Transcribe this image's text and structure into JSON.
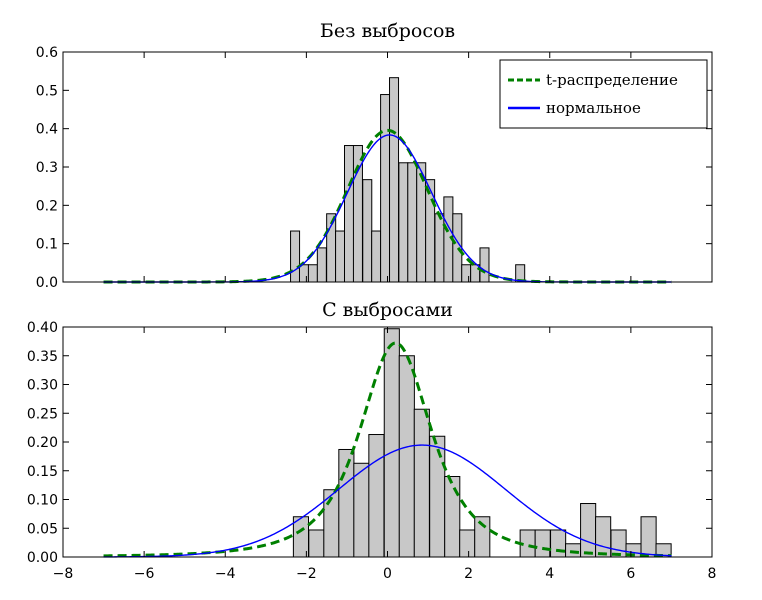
{
  "chart_data": [
    {
      "type": "bar",
      "title": "Без выбросов",
      "xlabel": "",
      "ylabel": "",
      "xlim": [
        -8,
        8
      ],
      "ylim": [
        0,
        0.6
      ],
      "grid": false,
      "legend_position": "top-right",
      "x_ticks": [],
      "y_ticks": [
        0.0,
        0.1,
        0.2,
        0.3,
        0.4,
        0.5,
        0.6
      ],
      "y_tick_labels": [
        "0.0",
        "0.1",
        "0.2",
        "0.3",
        "0.4",
        "0.5",
        "0.6"
      ],
      "histogram": {
        "bin_width": 0.2222,
        "bins": [
          {
            "x": -2.39,
            "y": 0.133
          },
          {
            "x": -2.17,
            "y": 0.045
          },
          {
            "x": -1.95,
            "y": 0.045
          },
          {
            "x": -1.73,
            "y": 0.089
          },
          {
            "x": -1.5,
            "y": 0.178
          },
          {
            "x": -1.28,
            "y": 0.133
          },
          {
            "x": -1.06,
            "y": 0.356
          },
          {
            "x": -0.84,
            "y": 0.356
          },
          {
            "x": -0.61,
            "y": 0.267
          },
          {
            "x": -0.39,
            "y": 0.133
          },
          {
            "x": -0.17,
            "y": 0.489
          },
          {
            "x": 0.05,
            "y": 0.533
          },
          {
            "x": 0.28,
            "y": 0.311
          },
          {
            "x": 0.5,
            "y": 0.311
          },
          {
            "x": 0.72,
            "y": 0.311
          },
          {
            "x": 0.94,
            "y": 0.267
          },
          {
            "x": 1.17,
            "y": 0.178
          },
          {
            "x": 1.39,
            "y": 0.222
          },
          {
            "x": 1.61,
            "y": 0.178
          },
          {
            "x": 1.83,
            "y": 0.045
          },
          {
            "x": 2.05,
            "y": 0.045
          },
          {
            "x": 2.28,
            "y": 0.089
          },
          {
            "x": 3.16,
            "y": 0.045
          }
        ],
        "color": "#c8c8c8",
        "edgecolor": "#000000"
      },
      "series": [
        {
          "name": "t-распределение",
          "kind": "t-pdf",
          "loc": 0.0,
          "scale": 1.0,
          "df": 30,
          "xmin": -7,
          "xmax": 7,
          "color": "#008000",
          "style": "dashed"
        },
        {
          "name": "нормальное",
          "kind": "normal-pdf",
          "loc": 0.05,
          "scale": 1.04,
          "xmin": -7,
          "xmax": 7,
          "color": "#0000ff",
          "style": "solid"
        }
      ]
    },
    {
      "type": "bar",
      "title": "С выбросами",
      "xlabel": "",
      "ylabel": "",
      "xlim": [
        -8,
        8
      ],
      "ylim": [
        0,
        0.4
      ],
      "grid": false,
      "x_ticks": [
        -8,
        -6,
        -4,
        -2,
        0,
        2,
        4,
        6,
        8
      ],
      "x_tick_labels": [
        "−8",
        "−6",
        "−4",
        "−2",
        "0",
        "2",
        "4",
        "6",
        "8"
      ],
      "y_ticks": [
        0.0,
        0.05,
        0.1,
        0.15,
        0.2,
        0.25,
        0.3,
        0.35,
        0.4
      ],
      "y_tick_labels": [
        "0.00",
        "0.05",
        "0.10",
        "0.15",
        "0.20",
        "0.25",
        "0.30",
        "0.35",
        "0.40"
      ],
      "histogram": {
        "bin_width": 0.3725,
        "bins": [
          {
            "x": -2.32,
            "y": 0.07
          },
          {
            "x": -1.94,
            "y": 0.047
          },
          {
            "x": -1.57,
            "y": 0.117
          },
          {
            "x": -1.2,
            "y": 0.187
          },
          {
            "x": -0.83,
            "y": 0.163
          },
          {
            "x": -0.46,
            "y": 0.213
          },
          {
            "x": -0.08,
            "y": 0.397
          },
          {
            "x": 0.29,
            "y": 0.35
          },
          {
            "x": 0.66,
            "y": 0.257
          },
          {
            "x": 1.04,
            "y": 0.21
          },
          {
            "x": 1.41,
            "y": 0.14
          },
          {
            "x": 1.78,
            "y": 0.047
          },
          {
            "x": 2.15,
            "y": 0.07
          },
          {
            "x": 3.27,
            "y": 0.047
          },
          {
            "x": 3.64,
            "y": 0.047
          },
          {
            "x": 4.02,
            "y": 0.047
          },
          {
            "x": 4.39,
            "y": 0.023
          },
          {
            "x": 4.76,
            "y": 0.093
          },
          {
            "x": 5.13,
            "y": 0.07
          },
          {
            "x": 5.51,
            "y": 0.047
          },
          {
            "x": 5.88,
            "y": 0.023
          },
          {
            "x": 6.25,
            "y": 0.07
          },
          {
            "x": 6.62,
            "y": 0.023
          }
        ],
        "color": "#c8c8c8",
        "edgecolor": "#000000"
      },
      "series": [
        {
          "name": "t-распределение",
          "kind": "t-pdf",
          "loc": 0.2,
          "scale": 0.96,
          "df": 2.2,
          "xmin": -7,
          "xmax": 7,
          "color": "#008000",
          "style": "dashed"
        },
        {
          "name": "нормальное",
          "kind": "normal-pdf",
          "loc": 0.85,
          "scale": 2.05,
          "xmin": -7,
          "xmax": 7,
          "color": "#0000ff",
          "style": "solid"
        }
      ]
    }
  ]
}
